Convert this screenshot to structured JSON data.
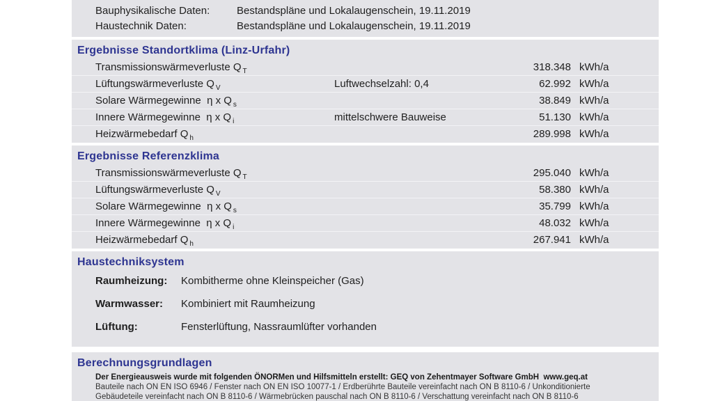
{
  "colors": {
    "accent_navy": "#2e3591",
    "row_bg": "#e3e3e7",
    "page_bg": "#ffffff"
  },
  "meta": {
    "rows": [
      {
        "label": "Bauphysikalische Daten:",
        "value": "Bestandspläne und Lokalaugenschein, 19.11.2019"
      },
      {
        "label": "Haustechnik Daten:",
        "value": "Bestandspläne und Lokalaugenschein, 19.11.2019"
      }
    ]
  },
  "standortklima": {
    "title": "Ergebnisse Standortklima (Linz-Urfahr)",
    "rows": [
      {
        "label": "Transmissionswärmeverluste Q",
        "sub": "T",
        "note": "",
        "value": "318.348",
        "unit": "kWh/a"
      },
      {
        "label": "Lüftungswärmeverluste Q",
        "sub": "V",
        "note": "Luftwechselzahl: 0,4",
        "value": "62.992",
        "unit": "kWh/a"
      },
      {
        "label": "Solare Wärmegewinne  η x Q",
        "sub": "s",
        "note": "",
        "value": "38.849",
        "unit": "kWh/a"
      },
      {
        "label": "Innere Wärmegewinne  η x Q",
        "sub": "i",
        "note": "mittelschwere Bauweise",
        "value": "51.130",
        "unit": "kWh/a"
      },
      {
        "label": "Heizwärmebedarf Q",
        "sub": "h",
        "note": "",
        "value": "289.998",
        "unit": "kWh/a"
      }
    ]
  },
  "referenzklima": {
    "title": "Ergebnisse Referenzklima",
    "rows": [
      {
        "label": "Transmissionswärmeverluste Q",
        "sub": "T",
        "note": "",
        "value": "295.040",
        "unit": "kWh/a"
      },
      {
        "label": "Lüftungswärmeverluste Q",
        "sub": "V",
        "note": "",
        "value": "58.380",
        "unit": "kWh/a"
      },
      {
        "label": "Solare Wärmegewinne  η x Q",
        "sub": "s",
        "note": "",
        "value": "35.799",
        "unit": "kWh/a"
      },
      {
        "label": "Innere Wärmegewinne  η x Q",
        "sub": "i",
        "note": "",
        "value": "48.032",
        "unit": "kWh/a"
      },
      {
        "label": "Heizwärmebedarf Q",
        "sub": "h",
        "note": "",
        "value": "267.941",
        "unit": "kWh/a"
      }
    ]
  },
  "haustechnik": {
    "title": "Haustechniksystem",
    "rows": [
      {
        "label": "Raumheizung:",
        "value": "Kombitherme ohne Kleinspeicher (Gas)"
      },
      {
        "label": "Warmwasser:",
        "value": "Kombiniert mit Raumheizung"
      },
      {
        "label": "Lüftung:",
        "value": "Fensterlüftung, Nassraumlüfter vorhanden"
      }
    ]
  },
  "berechnung": {
    "title": "Berechnungsgrundlagen",
    "bold_line": "Der Energieausweis wurde mit folgenden ÖNORMen und Hilfsmitteln erstellt: GEQ von Zehentmayer Software GmbH  www.geq.at",
    "lines": [
      "Bauteile nach ON EN ISO 6946 / Fenster nach ON EN ISO 10077-1 / Erdberührte Bauteile vereinfacht nach ON B 8110-6 / Unkonditionierte",
      "Gebäudeteile vereinfacht nach ON B 8110-6 / Wärmebrücken pauschal nach ON B 8110-6 / Verschattung vereinfacht nach ON B 8110-6"
    ]
  }
}
